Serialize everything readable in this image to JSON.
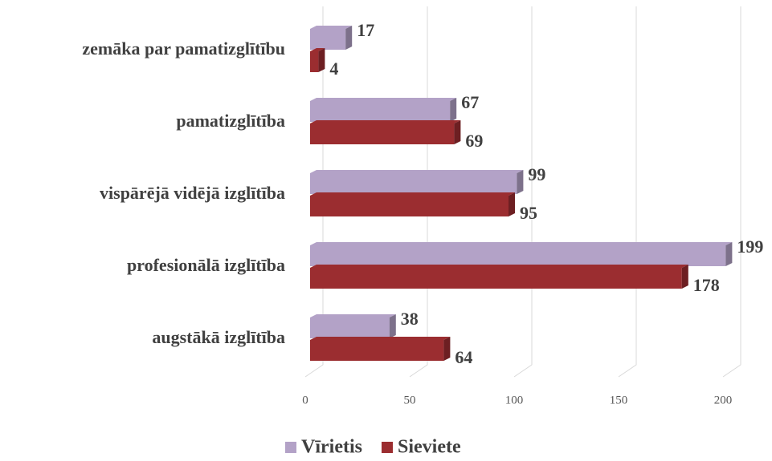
{
  "chart_data": {
    "type": "bar",
    "orientation": "horizontal",
    "categories": [
      "zemāka par pamatizglītību",
      "pamatizglītība",
      "vispārējā vidējā izglītība",
      "profesionālā izglītība",
      "augstākā izglītība"
    ],
    "series": [
      {
        "name": "Vīrietis",
        "color": "#b3a2c7",
        "values": [
          17,
          67,
          99,
          199,
          38
        ]
      },
      {
        "name": "Sieviete",
        "color": "#9b2d30",
        "values": [
          4,
          69,
          95,
          178,
          64
        ]
      }
    ],
    "xlim": [
      0,
      200
    ],
    "xticks": [
      0,
      50,
      100,
      150,
      200
    ],
    "grid": true,
    "legend": "bottom"
  }
}
